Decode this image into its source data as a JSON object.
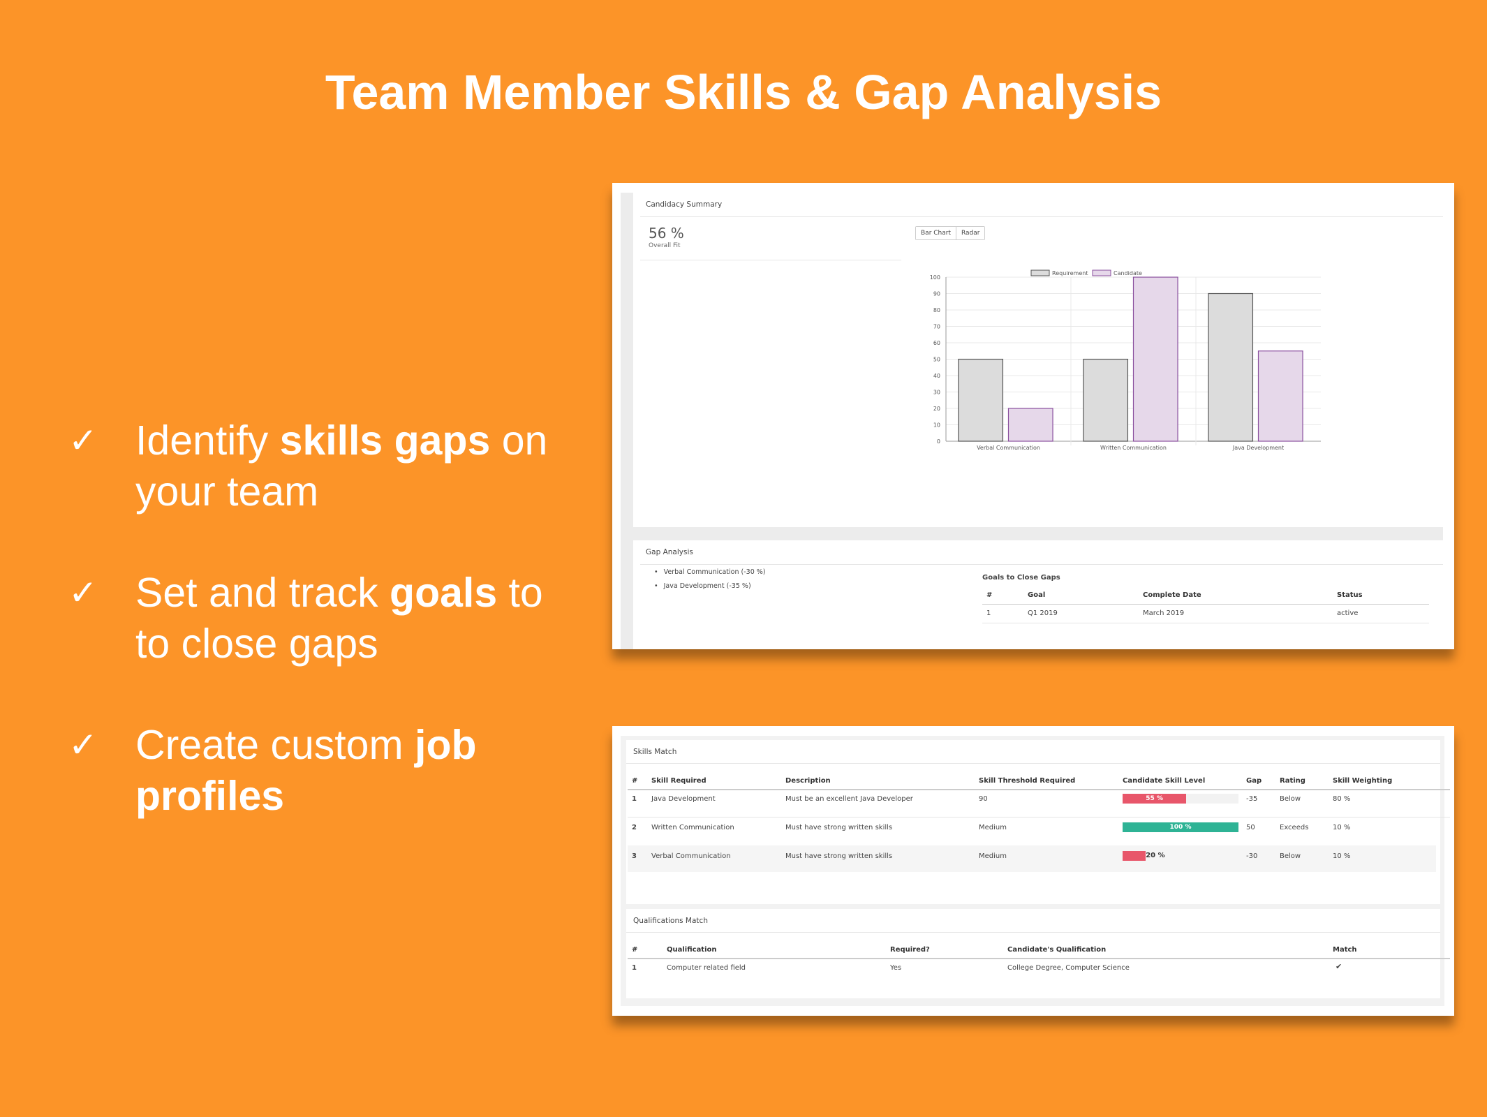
{
  "title": "Team Member Skills & Gap Analysis",
  "bullets": [
    {
      "check": "✓",
      "pre": "Identify ",
      "bold": "skills gaps",
      "post": " on",
      "line2": "your team"
    },
    {
      "check": "✓",
      "pre": "Set and track ",
      "bold": "goals",
      "post": " to",
      "line2": "to close gaps"
    },
    {
      "check": "✓",
      "pre": "Create custom ",
      "bold": "job",
      "post": "",
      "line2": "profiles",
      "line2_bold": true
    }
  ],
  "candidacy": {
    "title": "Candidacy Summary",
    "fit_value": "56 %",
    "fit_label": "Overall Fit",
    "buttons": [
      "Bar Chart",
      "Radar"
    ]
  },
  "chart_data": {
    "type": "bar",
    "categories": [
      "Verbal Communication",
      "Written Communication",
      "Java Development"
    ],
    "series": [
      {
        "name": "Requirement",
        "values": [
          50,
          50,
          90
        ],
        "color": "#dcdcdc",
        "stroke": "#555555"
      },
      {
        "name": "Candidate",
        "values": [
          20,
          100,
          55
        ],
        "color": "#e6d8ea",
        "stroke": "#8a4f9e"
      }
    ],
    "ylim": [
      0,
      100
    ],
    "yticks": [
      0,
      10,
      20,
      30,
      40,
      50,
      60,
      70,
      80,
      90,
      100
    ],
    "legend_placement": "top-center",
    "grid": true
  },
  "gap_analysis": {
    "title": "Gap Analysis",
    "items": [
      "Verbal Communication (-30 %)",
      "Java Development (-35 %)"
    ],
    "goals_title": "Goals to Close Gaps",
    "goals_headers": [
      "#",
      "Goal",
      "Complete Date",
      "Status"
    ],
    "goals_rows": [
      [
        "1",
        "Q1 2019",
        "March 2019",
        "active"
      ]
    ]
  },
  "skills_match": {
    "title": "Skills Match",
    "headers": [
      "#",
      "Skill Required",
      "Description",
      "Skill Threshold Required",
      "Candidate Skill Level",
      "Gap",
      "Rating",
      "Skill Weighting"
    ],
    "rows": [
      {
        "num": "1",
        "skill": "Java Development",
        "description": "Must be an excellent Java Developer",
        "threshold": "90",
        "level": 55,
        "level_label": "55 %",
        "level_color": "#e8566a",
        "gap": "-35",
        "rating": "Below",
        "weighting": "80 %"
      },
      {
        "num": "2",
        "skill": "Written Communication",
        "description": "Must have strong written skills",
        "threshold": "Medium",
        "level": 100,
        "level_label": "100 %",
        "level_color": "#2eb395",
        "gap": "50",
        "rating": "Exceeds",
        "weighting": "10 %"
      },
      {
        "num": "3",
        "skill": "Verbal Communication",
        "description": "Must have strong written skills",
        "threshold": "Medium",
        "level": 20,
        "level_label": "20 %",
        "level_color": "#e8566a",
        "gap": "-30",
        "rating": "Below",
        "weighting": "10 %"
      }
    ]
  },
  "qualifications_match": {
    "title": "Qualifications Match",
    "headers": [
      "#",
      "Qualification",
      "Required?",
      "Candidate's Qualification",
      "Match"
    ],
    "rows": [
      {
        "num": "1",
        "qualification": "Computer related field",
        "required": "Yes",
        "candidate": "College Degree, Computer Science",
        "match": "✔"
      }
    ]
  }
}
